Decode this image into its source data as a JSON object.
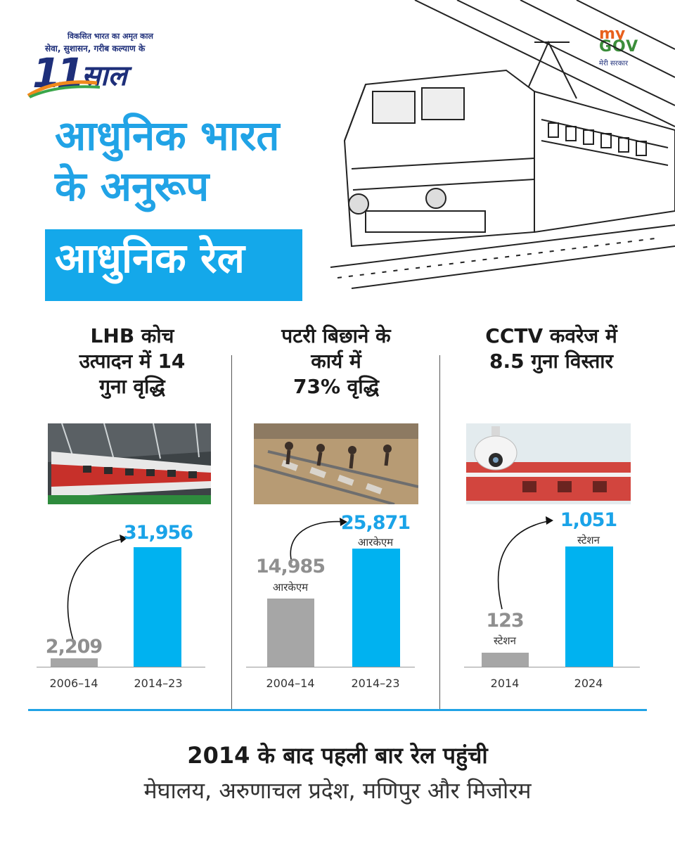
{
  "logo": {
    "tagline_top": "विकसित भारत का अमृत काल",
    "tagline": "सेवा, सुशासन, गरीब कल्याण के",
    "number": "11",
    "word": "साल"
  },
  "mygov": {
    "my": "my",
    "gov": "GOV",
    "subtitle": "मेरी सरकार"
  },
  "headline": {
    "line1": "आधुनिक भारत",
    "line2": "के अनुरूप",
    "highlight": "आधुनिक रेल"
  },
  "colors": {
    "accent": "#00b2f0",
    "old_bar": "#a6a6a6",
    "headline": "#21a3e6"
  },
  "panels": [
    {
      "title_lines": [
        "LHB कोच",
        "उत्पादन में 14",
        "गुना वृद्धि"
      ],
      "photo_icon": "lhb-coach-photo"
    },
    {
      "title_lines": [
        "पटरी बिछाने के",
        "कार्य में",
        "73% वृद्धि"
      ],
      "photo_icon": "track-laying-photo"
    },
    {
      "title_lines": [
        "CCTV कवरेज में",
        "8.5 गुना विस्तार"
      ],
      "photo_icon": "cctv-camera-photo"
    }
  ],
  "chart_data": [
    {
      "type": "bar",
      "categories": [
        "2006–14",
        "2014–23"
      ],
      "values": [
        2209,
        31956
      ],
      "value_labels": [
        "2,209",
        "31,956"
      ],
      "units": [
        "",
        ""
      ],
      "title": "LHB कोच उत्पादन में 14 गुना वृद्धि"
    },
    {
      "type": "bar",
      "categories": [
        "2004–14",
        "2014–23"
      ],
      "values": [
        14985,
        25871
      ],
      "value_labels": [
        "14,985",
        "25,871"
      ],
      "units": [
        "आरकेएम",
        "आरकेएम"
      ],
      "title": "पटरी बिछाने के कार्य में 73% वृद्धि"
    },
    {
      "type": "bar",
      "categories": [
        "2014",
        "2024"
      ],
      "values": [
        123,
        1051
      ],
      "value_labels": [
        "123",
        "1,051"
      ],
      "units": [
        "स्टेशन",
        "स्टेशन"
      ],
      "title": "CCTV कवरेज में 8.5 गुना विस्तार"
    }
  ],
  "footer": {
    "line1": "2014 के बाद पहली बार रेल पहुंची",
    "line2": "मेघालय, अरुणाचल प्रदेश, मणिपुर और मिजोरम"
  }
}
